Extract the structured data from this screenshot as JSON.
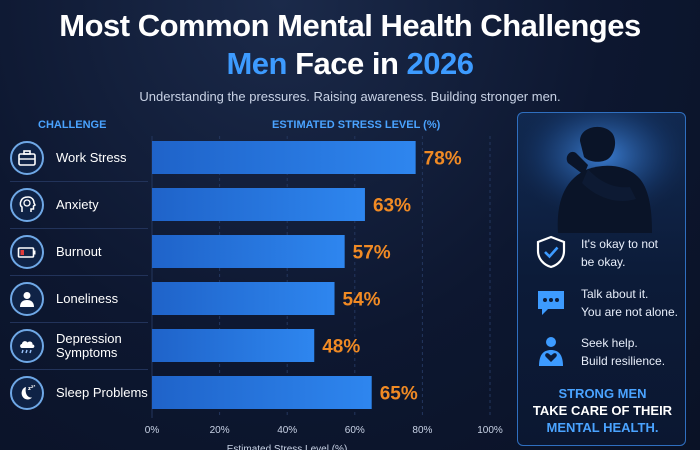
{
  "header": {
    "title_line1": "Most Common Mental Health Challenges",
    "title_line2_accent1": "Men",
    "title_line2_plain": " Face in ",
    "title_line2_accent2": "2026",
    "subtitle": "Understanding the pressures. Raising awareness. Building stronger men."
  },
  "columns": {
    "challenge": "CHALLENGE",
    "stress": "ESTIMATED STRESS LEVEL (%)"
  },
  "rows": [
    {
      "label": "Work Stress",
      "icon": "briefcase-icon"
    },
    {
      "label": "Anxiety",
      "icon": "brain-head-icon"
    },
    {
      "label": "Burnout",
      "icon": "low-battery-icon"
    },
    {
      "label": "Loneliness",
      "icon": "person-icon"
    },
    {
      "label": "Depression\nSymptoms",
      "icon": "rain-cloud-icon"
    },
    {
      "label": "Sleep Problems",
      "icon": "moon-zzz-icon"
    }
  ],
  "chart_data": {
    "type": "bar",
    "orientation": "horizontal",
    "categories": [
      "Work Stress",
      "Anxiety",
      "Burnout",
      "Loneliness",
      "Depression Symptoms",
      "Sleep Problems"
    ],
    "values": [
      78,
      63,
      57,
      54,
      48,
      65
    ],
    "value_labels": [
      "78%",
      "63%",
      "57%",
      "54%",
      "48%",
      "65%"
    ],
    "xticks": [
      "0%",
      "20%",
      "40%",
      "60%",
      "80%",
      "100%"
    ],
    "xlim": [
      0,
      100
    ],
    "xlabel": "Estimated Stress Level (%)",
    "bar_color": "#2e86ef",
    "label_color": "#f08a24",
    "grid": true
  },
  "sidebar": {
    "tips": [
      {
        "icon": "shield-check-icon",
        "line1": "It's okay to not",
        "line2": "be okay."
      },
      {
        "icon": "speech-bubble-icon",
        "line1": "Talk about it.",
        "line2": "You are not alone."
      },
      {
        "icon": "person-heart-icon",
        "line1": "Seek help.",
        "line2": "Build resilience."
      }
    ],
    "closing_line1": "STRONG MEN",
    "closing_line2": "TAKE CARE OF THEIR",
    "closing_line3": "MENTAL HEALTH."
  }
}
